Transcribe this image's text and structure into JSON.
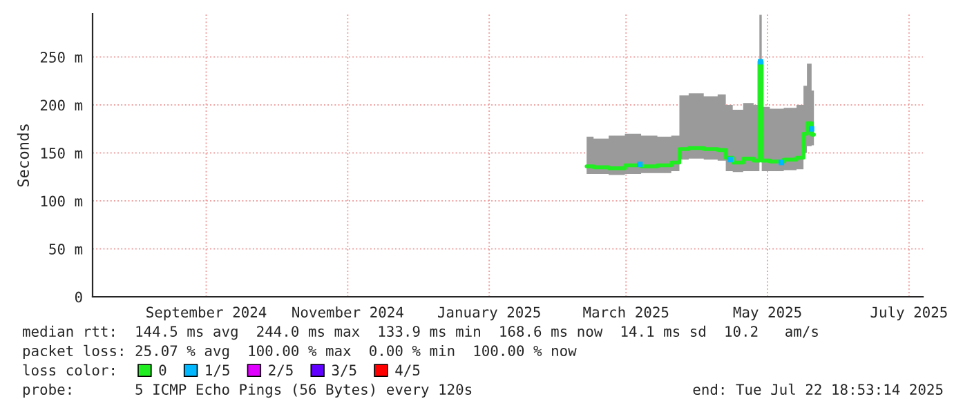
{
  "chart_data": {
    "type": "line",
    "ylabel": "Seconds",
    "xlim": [
      "2024-07-29",
      "2025-07-22"
    ],
    "xticks": [
      {
        "value": "2024-09-16",
        "label": "September 2024"
      },
      {
        "value": "2024-11-16",
        "label": "November 2024"
      },
      {
        "value": "2025-01-16",
        "label": "January 2025"
      },
      {
        "value": "2025-03-16",
        "label": "March 2025"
      },
      {
        "value": "2025-05-16",
        "label": "May 2025"
      },
      {
        "value": "2025-07-16",
        "label": "July 2025"
      }
    ],
    "ylim": [
      0,
      295
    ],
    "yticks": [
      0,
      {
        "value": 50,
        "label": "50 m"
      },
      {
        "value": 100,
        "label": "100 m"
      },
      {
        "value": 150,
        "label": "150 m"
      },
      {
        "value": 200,
        "label": "200 m"
      },
      {
        "value": 250,
        "label": "250 m"
      }
    ],
    "grid": true,
    "legend": "bottom",
    "legend_title": "loss color:",
    "series": [
      {
        "name": "0",
        "color": "#20ee20",
        "x": [
          "2025-02-27",
          "2025-03-05",
          "2025-03-12",
          "2025-03-19",
          "2025-03-26",
          "2025-04-02",
          "2025-04-07",
          "2025-04-09",
          "2025-04-15",
          "2025-04-22",
          "2025-04-27",
          "2025-04-29",
          "2025-05-03",
          "2025-05-08",
          "2025-05-12",
          "2025-05-13",
          "2025-05-14",
          "2025-05-20",
          "2025-05-26",
          "2025-05-31",
          "2025-06-01",
          "2025-06-03",
          "2025-06-05"
        ],
        "values": [
          136,
          135,
          134,
          137,
          136,
          137,
          140,
          154,
          155,
          154,
          153,
          145,
          140,
          144,
          142,
          245,
          142,
          141,
          143,
          145,
          170,
          181,
          169
        ],
        "lower": [
          128,
          128,
          127,
          128,
          129,
          129,
          131,
          143,
          144,
          143,
          142,
          131,
          130,
          131,
          131,
          206,
          131,
          131,
          132,
          133,
          150,
          157,
          158
        ],
        "upper": [
          167,
          165,
          168,
          170,
          168,
          167,
          168,
          210,
          212,
          209,
          211,
          200,
          195,
          202,
          200,
          294,
          198,
          196,
          197,
          200,
          220,
          243,
          215
        ]
      },
      {
        "name": "1/5",
        "type": "scatter",
        "color": "#00b8ff",
        "x": [
          "2025-03-22",
          "2025-04-30",
          "2025-05-13",
          "2025-05-22",
          "2025-06-04"
        ],
        "values": [
          138,
          143,
          245,
          140,
          175
        ]
      },
      {
        "name": "2/5",
        "type": "scatter",
        "color": "#e000ff"
      },
      {
        "name": "3/5",
        "type": "scatter",
        "color": "#6000ff"
      },
      {
        "name": "4/5",
        "type": "scatter",
        "color": "#ff0000"
      }
    ],
    "annotations": [
      "median rtt:  144.5 ms avg  244.0 ms max  133.9 ms min  168.6 ms now  14.1 ms sd  10.2   am/s",
      "packet loss: 25.07 % avg  100.00 % max  0.00 % min  100.00 % now",
      "probe:       5 ICMP Echo Pings (56 Bytes) every 120s",
      "end: Tue Jul 22 18:53:14 2025"
    ]
  }
}
